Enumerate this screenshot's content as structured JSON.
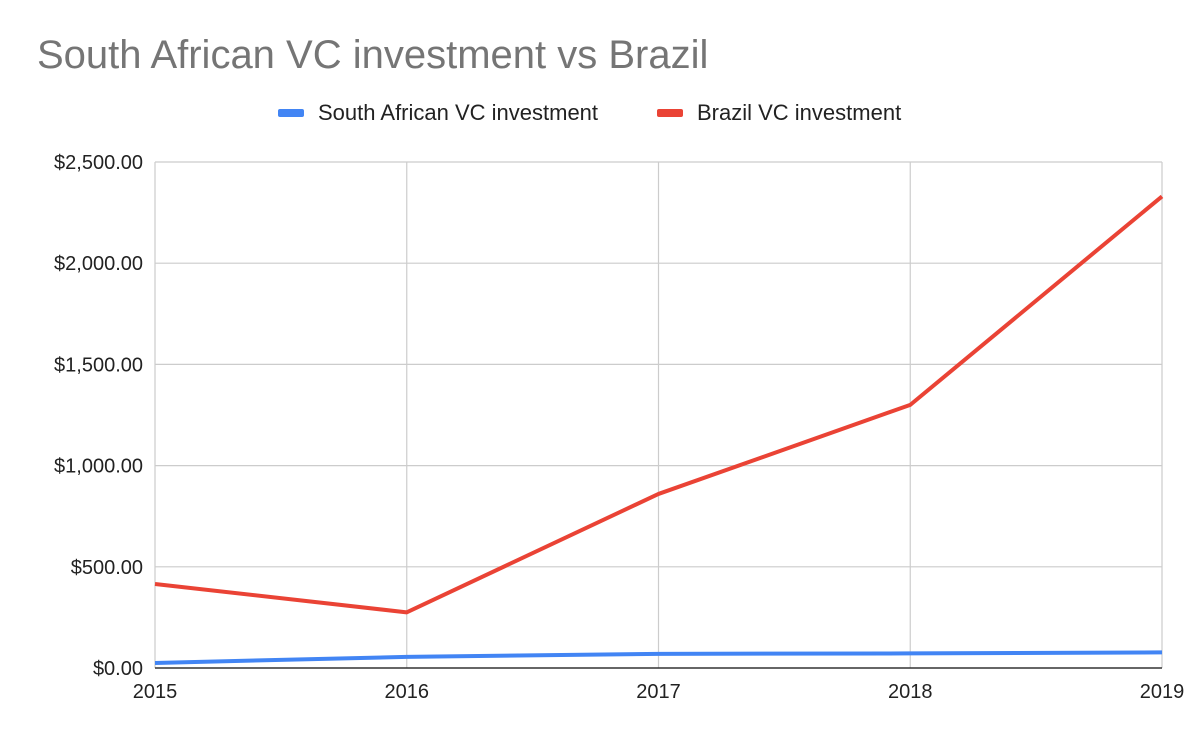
{
  "chart_data": {
    "type": "line",
    "title": "South African VC investment vs Brazil",
    "x": [
      "2015",
      "2016",
      "2017",
      "2018",
      "2019"
    ],
    "y_ticks": [
      "$0.00",
      "$500.00",
      "$1,000.00",
      "$1,500.00",
      "$2,000.00",
      "$2,500.00"
    ],
    "ylim": [
      0,
      2500
    ],
    "grid": true,
    "legend_position": "top",
    "series": [
      {
        "name": "South African VC investment",
        "color": "#4285f4",
        "values": [
          25,
          55,
          70,
          72,
          77
        ]
      },
      {
        "name": "Brazil VC investment",
        "color": "#ea4335",
        "values": [
          415,
          275,
          860,
          1300,
          2330
        ]
      }
    ]
  }
}
